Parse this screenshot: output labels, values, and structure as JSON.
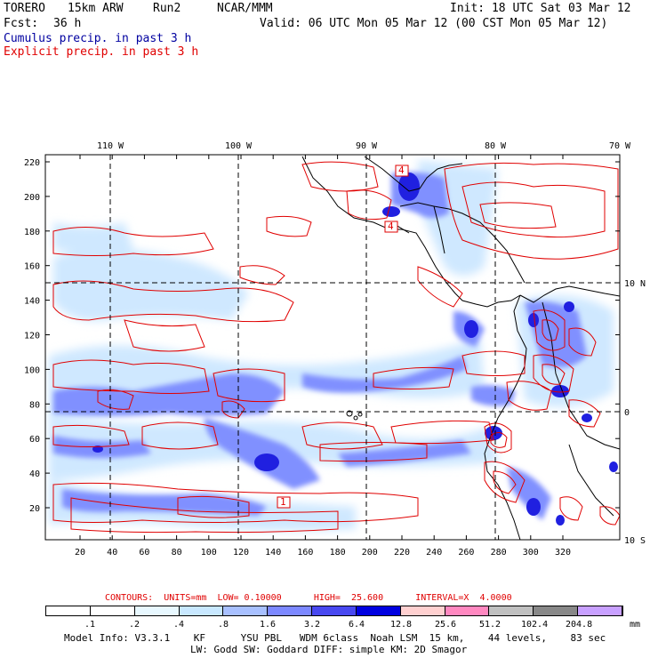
{
  "header": {
    "model": "TORERO",
    "resolution": "15km ARW",
    "run": "Run2",
    "org": "NCAR/MMM",
    "init": "Init: 18 UTC Sat 03 Mar 12",
    "fcst_label": "Fcst:",
    "fcst_value": "36 h",
    "valid": "Valid: 06 UTC Mon 05 Mar 12 (00 CST Mon 05 Mar 12)",
    "line1": "Cumulus precip. in past 3 h",
    "line2": "Explicit precip. in past 3 h"
  },
  "map": {
    "lon_labels": [
      "110 W",
      "100 W",
      "90 W",
      "80 W",
      "70 W"
    ],
    "lat_labels": [
      "10 N",
      "0",
      "10 S"
    ],
    "y_ticks": [
      "220",
      "200",
      "180",
      "160",
      "140",
      "120",
      "100",
      "80",
      "60",
      "40",
      "20"
    ],
    "x_ticks": [
      "20",
      "40",
      "60",
      "80",
      "100",
      "120",
      "140",
      "160",
      "180",
      "200",
      "220",
      "240",
      "260",
      "280",
      "300",
      "320"
    ],
    "contour_labels": [
      "4",
      "4",
      "1"
    ],
    "colors": {
      "contour": "#e00000",
      "coast": "#000000",
      "grid": "#000000"
    }
  },
  "contours_line": {
    "label": "CONTOURS:",
    "units": "UNITS=mm",
    "low": "LOW= 0.10000",
    "high": "HIGH=  25.600",
    "interval": "INTERVAL=X  4.0000"
  },
  "colorbar": {
    "labels": [
      ".1",
      ".2",
      ".4",
      ".8",
      "1.6",
      "3.2",
      "6.4",
      "12.8",
      "25.6",
      "51.2",
      "102.4",
      "204.8"
    ],
    "unit": "mm",
    "colors": [
      "#ffffff",
      "#ffffff",
      "#ffffff",
      "#e8f8ff",
      "#c8e8ff",
      "#a8c0ff",
      "#7c88ff",
      "#4848f0",
      "#0000e0",
      "#ffd0d0",
      "#ff88c0",
      "#c0c0c0",
      "#888888",
      "#c8a0ff"
    ]
  },
  "model_info": {
    "line1": "Model Info: V3.3.1    KF      YSU PBL   WDM 6class  Noah LSM  15 km,    44 levels,    83 sec",
    "line2": "LW: Godd SW: Goddard DIFF: simple KM: 2D Smagor"
  }
}
